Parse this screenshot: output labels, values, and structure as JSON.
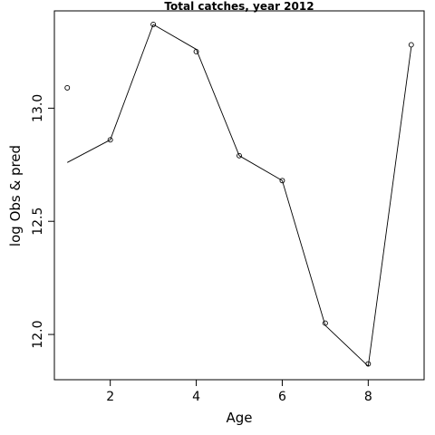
{
  "chart_data": {
    "type": "line",
    "title": "Total catches, year 2012",
    "xlabel": "Age",
    "ylabel": "log Obs & pred",
    "xlim": [
      0.7,
      9.3
    ],
    "ylim": [
      11.8,
      13.43
    ],
    "x_ticks": [
      2,
      4,
      6,
      8
    ],
    "y_ticks": [
      12.0,
      12.5,
      13.0
    ],
    "x_tick_labels": [
      "2",
      "4",
      "6",
      "8"
    ],
    "y_tick_labels": [
      "12.0",
      "12.5",
      "13.0"
    ],
    "series": [
      {
        "style": "points",
        "x": [
          1,
          2,
          3,
          4,
          5,
          6,
          7,
          8,
          9
        ],
        "y": [
          13.09,
          12.86,
          13.37,
          13.25,
          12.79,
          12.68,
          12.05,
          11.87,
          13.28
        ]
      },
      {
        "style": "line",
        "x": [
          1,
          2,
          3,
          4,
          5,
          6,
          7,
          8,
          9
        ],
        "y": [
          12.76,
          12.86,
          13.37,
          13.26,
          12.79,
          12.68,
          12.04,
          11.86,
          13.27
        ]
      }
    ],
    "grid": false,
    "legend": "none"
  }
}
